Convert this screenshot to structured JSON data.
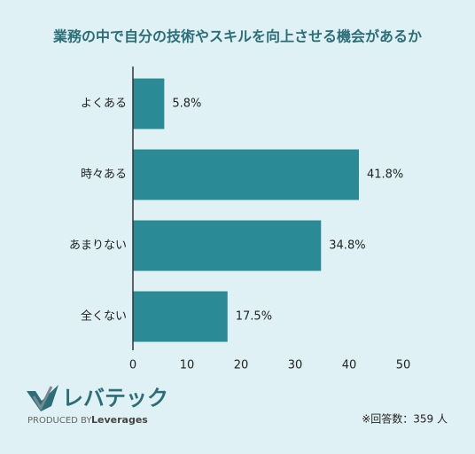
{
  "chart_data": {
    "type": "hbar",
    "title": "業務の中で自分の技術やスキルを向上させる機会があるか",
    "categories": [
      "よくある",
      "時々ある",
      "あまりない",
      "全くない"
    ],
    "values": [
      5.8,
      41.8,
      34.8,
      17.5
    ],
    "value_labels": [
      "5.8%",
      "41.8%",
      "34.8%",
      "17.5%"
    ],
    "color": "#2a8a96",
    "xlim": [
      0,
      50
    ],
    "xticks": [
      0,
      10,
      20,
      30,
      40,
      50
    ],
    "grid": false,
    "note": "※回答数：359 人",
    "logo": {
      "name": "レバテック",
      "produced_by": "PRODUCED BY",
      "brand": "Leverages"
    }
  }
}
